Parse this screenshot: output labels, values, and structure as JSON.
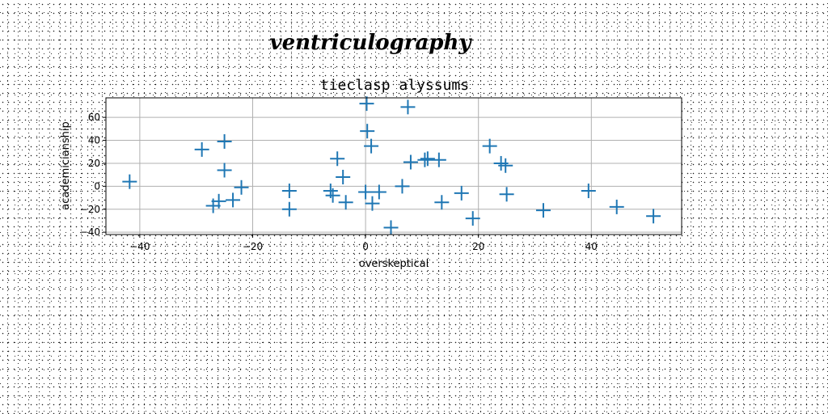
{
  "figure_title": "ventriculography",
  "chart_data": {
    "type": "scatter",
    "title": "tieclasp alyssums",
    "xlabel": "overskeptical",
    "ylabel": "academicianship",
    "xlim": [
      -46,
      56
    ],
    "ylim": [
      -42,
      77
    ],
    "xticks": [
      -40,
      -20,
      0,
      20,
      40
    ],
    "yticks": [
      -40,
      -20,
      0,
      20,
      40,
      60
    ],
    "grid": true,
    "marker": "plus",
    "color": "#1f77b4",
    "points": [
      {
        "x": -41.8,
        "y": 4
      },
      {
        "x": -29,
        "y": 32
      },
      {
        "x": -27,
        "y": -17
      },
      {
        "x": -26,
        "y": -13
      },
      {
        "x": -25,
        "y": 39
      },
      {
        "x": -25,
        "y": 14
      },
      {
        "x": -23.5,
        "y": -12
      },
      {
        "x": -22,
        "y": -1
      },
      {
        "x": -13.5,
        "y": -4
      },
      {
        "x": -13.5,
        "y": -20
      },
      {
        "x": -6.2,
        "y": -4
      },
      {
        "x": -5.8,
        "y": -8
      },
      {
        "x": -5,
        "y": 24
      },
      {
        "x": -4,
        "y": 8
      },
      {
        "x": -3.5,
        "y": -14
      },
      {
        "x": 0.2,
        "y": 72
      },
      {
        "x": 0.3,
        "y": 48
      },
      {
        "x": 0,
        "y": -5
      },
      {
        "x": 1,
        "y": 35
      },
      {
        "x": 1.2,
        "y": -15
      },
      {
        "x": 2.4,
        "y": -5
      },
      {
        "x": 4.5,
        "y": -36
      },
      {
        "x": 6.5,
        "y": 0
      },
      {
        "x": 7.5,
        "y": 69
      },
      {
        "x": 8,
        "y": 21
      },
      {
        "x": 10.5,
        "y": 23
      },
      {
        "x": 11,
        "y": 24
      },
      {
        "x": 13,
        "y": 23
      },
      {
        "x": 13.5,
        "y": -14
      },
      {
        "x": 17,
        "y": -6
      },
      {
        "x": 19,
        "y": -28
      },
      {
        "x": 22,
        "y": 35
      },
      {
        "x": 24,
        "y": 20
      },
      {
        "x": 24.8,
        "y": 18
      },
      {
        "x": 25,
        "y": -7
      },
      {
        "x": 31.5,
        "y": -21
      },
      {
        "x": 39.5,
        "y": -4
      },
      {
        "x": 44.5,
        "y": -18
      },
      {
        "x": 51,
        "y": -26
      }
    ]
  }
}
